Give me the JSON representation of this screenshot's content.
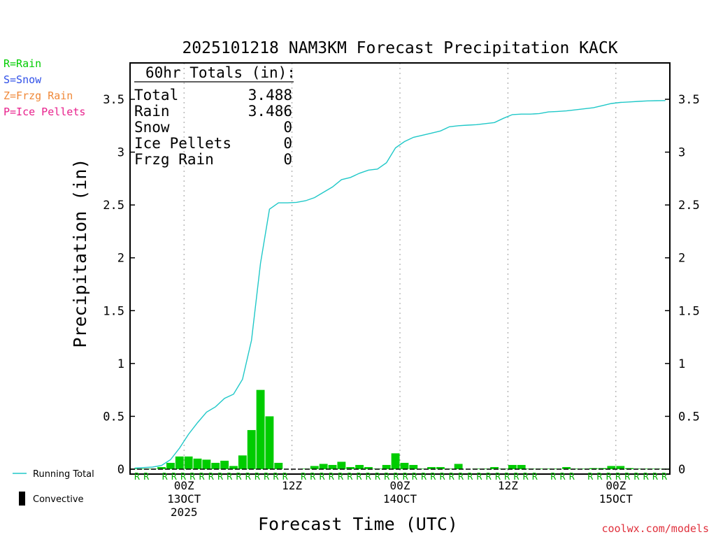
{
  "chart_data": {
    "type": "bar",
    "title": "2025101218 NAM3KM Forecast Precipitation KACK",
    "xlabel": "Forecast Time (UTC)",
    "ylabel": "Precipitation (in)",
    "ylim": [
      0,
      3.8
    ],
    "yticks": [
      "0",
      "0.5",
      "1",
      "1.5",
      "2",
      "2.5",
      "3",
      "3.5"
    ],
    "ytick_values": [
      0,
      0.5,
      1,
      1.5,
      2,
      2.5,
      3,
      3.5
    ],
    "xlim_hours": [
      0,
      60
    ],
    "gridlines": "vertical-dotted",
    "xticks": [
      {
        "hour": 6,
        "lines": [
          "00Z",
          "13OCT",
          "2025"
        ]
      },
      {
        "hour": 18,
        "lines": [
          "12Z"
        ]
      },
      {
        "hour": 30,
        "lines": [
          "00Z",
          "14OCT"
        ]
      },
      {
        "hour": 42,
        "lines": [
          "12Z"
        ]
      },
      {
        "hour": 54,
        "lines": [
          "00Z",
          "15OCT"
        ]
      }
    ],
    "legend_types": [
      {
        "label": "R=Rain",
        "color": "#00cc00"
      },
      {
        "label": "S=Snow",
        "color": "#3050e8"
      },
      {
        "label": "Z=Frzg Rain",
        "color": "#f08838"
      },
      {
        "label": "P=Ice Pellets",
        "color": "#e8208c"
      }
    ],
    "legend_series": [
      {
        "label": "Running Total",
        "color": "#20c8c8"
      },
      {
        "label": "Convective",
        "color": "#000000"
      }
    ],
    "totals": {
      "heading": "60hr Totals (in):",
      "rows": [
        {
          "label": "Total",
          "value": "3.488"
        },
        {
          "label": "Rain",
          "value": "3.486"
        },
        {
          "label": "Snow",
          "value": "0"
        },
        {
          "label": "Ice Pellets",
          "value": "0"
        },
        {
          "label": "Frzg Rain",
          "value": "0"
        }
      ]
    },
    "precip_type_markers": "RR RRRRRRRRRRRRRR RRRRRRRRRRRRRRRRRRRRRRRRRR RRR RRRRRRRRR",
    "bar_color": "#00cc00",
    "line_color": "#20c8c8",
    "hourly_precip": [
      0.005,
      0.005,
      0.005,
      0.02,
      0.06,
      0.12,
      0.12,
      0.1,
      0.09,
      0.06,
      0.08,
      0.03,
      0.13,
      0.37,
      0.75,
      0.5,
      0.06,
      0.0,
      0.0,
      0.005,
      0.03,
      0.05,
      0.04,
      0.07,
      0.02,
      0.04,
      0.02,
      0.005,
      0.04,
      0.15,
      0.06,
      0.04,
      0.005,
      0.02,
      0.02,
      0.005,
      0.05,
      0.0,
      0.005,
      0.005,
      0.02,
      0.005,
      0.04,
      0.04,
      0.005,
      0.005,
      0.005,
      0.005,
      0.02,
      0.005,
      0.005,
      0.01,
      0.01,
      0.03,
      0.03,
      0.01,
      0.005,
      0.005,
      0.005,
      0.005
    ],
    "running_total": [
      0.01,
      0.015,
      0.02,
      0.035,
      0.09,
      0.2,
      0.33,
      0.44,
      0.54,
      0.59,
      0.67,
      0.71,
      0.85,
      1.22,
      1.95,
      2.46,
      2.52,
      2.52,
      2.525,
      2.54,
      2.57,
      2.62,
      2.67,
      2.74,
      2.76,
      2.8,
      2.83,
      2.84,
      2.9,
      3.04,
      3.1,
      3.14,
      3.16,
      3.18,
      3.2,
      3.24,
      3.25,
      3.255,
      3.26,
      3.27,
      3.28,
      3.32,
      3.355,
      3.36,
      3.36,
      3.365,
      3.38,
      3.385,
      3.39,
      3.4,
      3.41,
      3.42,
      3.44,
      3.46,
      3.47,
      3.475,
      3.48,
      3.485,
      3.487,
      3.488
    ]
  },
  "credit": "coolwx.com/models"
}
